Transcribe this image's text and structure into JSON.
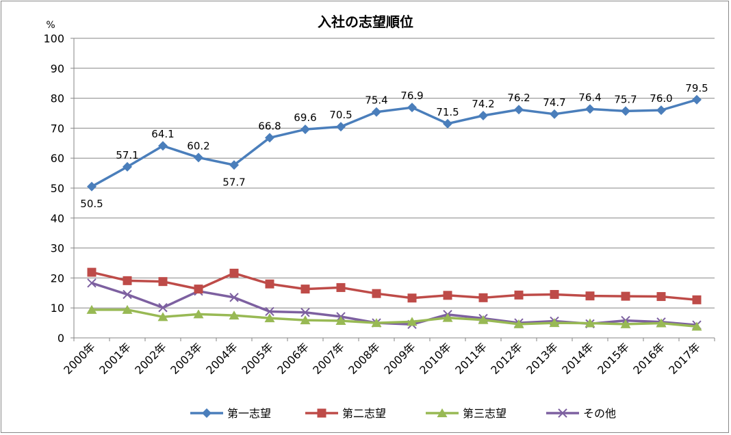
{
  "chart_data": {
    "type": "line",
    "title": "入社の志望順位",
    "ylabel": "%",
    "xlabel": "",
    "ylim": [
      0,
      100
    ],
    "y_ticks": [
      "0",
      "10",
      "20",
      "30",
      "40",
      "50",
      "60",
      "70",
      "80",
      "90",
      "100"
    ],
    "grid": true,
    "legend_position": "bottom",
    "categories": [
      "2000年",
      "2001年",
      "2002年",
      "2003年",
      "2004年",
      "2005年",
      "2006年",
      "2007年",
      "2008年",
      "2009年",
      "2010年",
      "2011年",
      "2012年",
      "2013年",
      "2014年",
      "2015年",
      "2016年",
      "2017年"
    ],
    "series": [
      {
        "name": "第一志望",
        "color": "#4A7EBB",
        "marker": "diamond",
        "values": [
          50.5,
          57.1,
          64.1,
          60.2,
          57.7,
          66.8,
          69.6,
          70.5,
          75.4,
          76.9,
          71.5,
          74.2,
          76.2,
          74.7,
          76.4,
          75.7,
          76.0,
          79.5
        ],
        "labels": [
          "50.5",
          "57.1",
          "64.1",
          "60.2",
          "57.7",
          "66.8",
          "69.6",
          "70.5",
          "75.4",
          "76.9",
          "71.5",
          "74.2",
          "76.2",
          "74.7",
          "76.4",
          "75.7",
          "76.0",
          "79.5"
        ]
      },
      {
        "name": "第二志望",
        "color": "#BE4B48",
        "marker": "square",
        "values": [
          21.9,
          19.1,
          18.8,
          16.3,
          21.6,
          18.0,
          16.3,
          16.8,
          14.8,
          13.3,
          14.2,
          13.4,
          14.3,
          14.5,
          14.0,
          13.9,
          13.8,
          12.7
        ]
      },
      {
        "name": "第三志望",
        "color": "#98B954",
        "marker": "triangle",
        "values": [
          9.4,
          9.4,
          7.0,
          7.9,
          7.5,
          6.6,
          5.9,
          5.7,
          5.0,
          5.4,
          6.7,
          6.0,
          4.6,
          5.0,
          4.9,
          4.6,
          4.9,
          3.8
        ]
      },
      {
        "name": "その他",
        "color": "#7D60A0",
        "marker": "x",
        "values": [
          18.3,
          14.5,
          10.1,
          15.6,
          13.5,
          8.8,
          8.5,
          7.1,
          5.0,
          4.5,
          7.8,
          6.5,
          5.0,
          5.6,
          4.7,
          5.8,
          5.3,
          4.3
        ]
      }
    ]
  }
}
